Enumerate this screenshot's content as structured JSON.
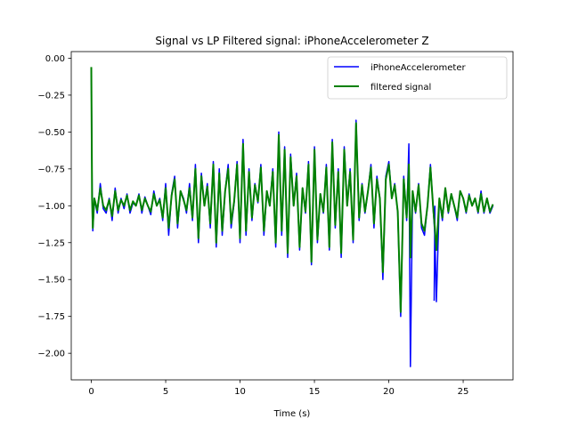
{
  "chart_data": {
    "type": "line",
    "title": "Signal vs LP Filtered signal: iPhoneAccelerometer Z",
    "xlabel": "Time (s)",
    "ylabel": "",
    "xlim": [
      -1.35,
      28.35
    ],
    "ylim": [
      -2.18,
      0.045
    ],
    "xticks": [
      0,
      5,
      10,
      15,
      20,
      25
    ],
    "xtick_labels": [
      "0",
      "5",
      "10",
      "15",
      "20",
      "25"
    ],
    "yticks": [
      0.0,
      -0.25,
      -0.5,
      -0.75,
      -1.0,
      -1.25,
      -1.5,
      -1.75,
      -2.0
    ],
    "ytick_labels": [
      "0.00",
      "−0.25",
      "−0.50",
      "−0.75",
      "−1.00",
      "−1.25",
      "−1.50",
      "−1.75",
      "−2.00"
    ],
    "grid": false,
    "legend_position": "top-right",
    "series": [
      {
        "name": "iPhoneAccelerometer",
        "color": "#0000ff",
        "width": 1.5,
        "x": [
          0.0,
          0.05,
          0.1,
          0.2,
          0.4,
          0.6,
          0.8,
          1.0,
          1.2,
          1.4,
          1.6,
          1.8,
          2.0,
          2.2,
          2.4,
          2.6,
          2.8,
          3.0,
          3.2,
          3.4,
          3.6,
          3.8,
          4.0,
          4.2,
          4.4,
          4.6,
          4.8,
          5.0,
          5.2,
          5.4,
          5.6,
          5.8,
          6.0,
          6.2,
          6.4,
          6.6,
          6.8,
          7.0,
          7.2,
          7.4,
          7.6,
          7.8,
          8.0,
          8.2,
          8.4,
          8.6,
          8.8,
          9.0,
          9.2,
          9.4,
          9.6,
          9.8,
          10.0,
          10.2,
          10.4,
          10.6,
          10.8,
          11.0,
          11.2,
          11.4,
          11.6,
          11.8,
          12.0,
          12.2,
          12.4,
          12.6,
          12.8,
          13.0,
          13.2,
          13.4,
          13.6,
          13.8,
          14.0,
          14.2,
          14.4,
          14.6,
          14.8,
          15.0,
          15.2,
          15.4,
          15.6,
          15.8,
          16.0,
          16.2,
          16.4,
          16.6,
          16.8,
          17.0,
          17.2,
          17.4,
          17.6,
          17.8,
          18.0,
          18.2,
          18.4,
          18.6,
          18.8,
          19.0,
          19.2,
          19.4,
          19.6,
          19.8,
          20.0,
          20.2,
          20.4,
          20.6,
          20.8,
          21.0,
          21.2,
          21.35,
          21.45,
          21.6,
          21.8,
          22.0,
          22.2,
          22.4,
          22.6,
          22.8,
          23.0,
          23.1,
          23.2,
          23.4,
          23.6,
          23.8,
          24.0,
          24.2,
          24.4,
          24.6,
          24.8,
          25.0,
          25.2,
          25.4,
          25.6,
          25.8,
          26.0,
          26.2,
          26.4,
          26.6,
          26.8,
          27.0
        ],
        "y": [
          -0.07,
          -0.9,
          -1.17,
          -0.95,
          -1.05,
          -0.85,
          -1.02,
          -1.05,
          -0.95,
          -1.1,
          -0.88,
          -1.05,
          -0.95,
          -1.02,
          -0.92,
          -1.05,
          -0.98,
          -1.0,
          -0.92,
          -1.05,
          -0.94,
          -1.0,
          -1.06,
          -0.9,
          -1.0,
          -0.95,
          -1.1,
          -0.85,
          -1.2,
          -0.92,
          -0.8,
          -1.15,
          -0.9,
          -0.95,
          -1.05,
          -0.85,
          -1.1,
          -0.72,
          -1.25,
          -0.78,
          -1.0,
          -0.85,
          -1.15,
          -0.7,
          -1.28,
          -0.75,
          -1.2,
          -0.9,
          -0.72,
          -1.15,
          -0.98,
          -0.7,
          -1.25,
          -0.55,
          -1.2,
          -0.75,
          -1.1,
          -0.85,
          -0.98,
          -0.72,
          -1.2,
          -0.9,
          -1.0,
          -0.75,
          -1.28,
          -0.5,
          -1.2,
          -0.6,
          -1.35,
          -0.65,
          -1.0,
          -0.78,
          -1.3,
          -0.88,
          -1.05,
          -0.7,
          -1.4,
          -0.6,
          -1.25,
          -0.92,
          -1.05,
          -0.72,
          -1.3,
          -0.55,
          -1.15,
          -0.75,
          -1.35,
          -0.6,
          -1.0,
          -0.75,
          -1.25,
          -0.42,
          -1.1,
          -0.85,
          -1.05,
          -0.9,
          -0.72,
          -1.15,
          -0.8,
          -0.95,
          -1.5,
          -0.8,
          -0.7,
          -0.95,
          -0.85,
          -1.05,
          -1.75,
          -0.8,
          -1.1,
          -0.58,
          -2.09,
          -0.9,
          -1.05,
          -0.85,
          -1.15,
          -1.2,
          -1.0,
          -0.72,
          -1.05,
          -1.2,
          -1.65,
          -0.95,
          -1.1,
          -0.88,
          -1.05,
          -0.92,
          -1.0,
          -1.1,
          -0.9,
          -0.95,
          -1.05,
          -0.92,
          -1.0,
          -0.95,
          -1.05,
          -0.9,
          -1.05,
          -0.95,
          -1.05,
          -1.0
        ],
        "x_extra": [
          23.0,
          23.05,
          23.1
        ],
        "y_extra": [
          -1.64,
          -1.64,
          -1.0
        ]
      },
      {
        "name": "filtered signal",
        "color": "#008000",
        "width": 2.0,
        "x": [
          0.0,
          0.05,
          0.1,
          0.2,
          0.4,
          0.6,
          0.8,
          1.0,
          1.2,
          1.4,
          1.6,
          1.8,
          2.0,
          2.2,
          2.4,
          2.6,
          2.8,
          3.0,
          3.2,
          3.4,
          3.6,
          3.8,
          4.0,
          4.2,
          4.4,
          4.6,
          4.8,
          5.0,
          5.2,
          5.4,
          5.6,
          5.8,
          6.0,
          6.2,
          6.4,
          6.6,
          6.8,
          7.0,
          7.2,
          7.4,
          7.6,
          7.8,
          8.0,
          8.2,
          8.4,
          8.6,
          8.8,
          9.0,
          9.2,
          9.4,
          9.6,
          9.8,
          10.0,
          10.2,
          10.4,
          10.6,
          10.8,
          11.0,
          11.2,
          11.4,
          11.6,
          11.8,
          12.0,
          12.2,
          12.4,
          12.6,
          12.8,
          13.0,
          13.2,
          13.4,
          13.6,
          13.8,
          14.0,
          14.2,
          14.4,
          14.6,
          14.8,
          15.0,
          15.2,
          15.4,
          15.6,
          15.8,
          16.0,
          16.2,
          16.4,
          16.6,
          16.8,
          17.0,
          17.2,
          17.4,
          17.6,
          17.8,
          18.0,
          18.2,
          18.4,
          18.6,
          18.8,
          19.0,
          19.2,
          19.4,
          19.6,
          19.8,
          20.0,
          20.2,
          20.4,
          20.6,
          20.8,
          21.0,
          21.2,
          21.35,
          21.45,
          21.6,
          21.8,
          22.0,
          22.2,
          22.4,
          22.6,
          22.8,
          23.0,
          23.1,
          23.2,
          23.4,
          23.6,
          23.8,
          24.0,
          24.2,
          24.4,
          24.6,
          24.8,
          25.0,
          25.2,
          25.4,
          25.6,
          25.8,
          26.0,
          26.2,
          26.4,
          26.6,
          26.8,
          27.0
        ],
        "y": [
          -0.06,
          -0.95,
          -1.15,
          -0.95,
          -1.03,
          -0.88,
          -1.0,
          -1.03,
          -0.96,
          -1.07,
          -0.9,
          -1.03,
          -0.96,
          -1.0,
          -0.93,
          -1.03,
          -0.97,
          -1.0,
          -0.93,
          -1.03,
          -0.95,
          -1.0,
          -1.04,
          -0.92,
          -1.0,
          -0.96,
          -1.08,
          -0.88,
          -1.15,
          -0.93,
          -0.82,
          -1.12,
          -0.9,
          -0.96,
          -1.03,
          -0.88,
          -1.08,
          -0.75,
          -1.22,
          -0.8,
          -1.0,
          -0.87,
          -1.12,
          -0.72,
          -1.25,
          -0.78,
          -1.17,
          -0.9,
          -0.75,
          -1.12,
          -0.97,
          -0.72,
          -1.22,
          -0.58,
          -1.17,
          -0.77,
          -1.08,
          -0.86,
          -0.97,
          -0.74,
          -1.17,
          -0.9,
          -1.0,
          -0.77,
          -1.25,
          -0.52,
          -1.17,
          -0.62,
          -1.32,
          -0.67,
          -1.0,
          -0.8,
          -1.28,
          -0.88,
          -1.04,
          -0.72,
          -1.38,
          -0.62,
          -1.23,
          -0.92,
          -1.04,
          -0.74,
          -1.28,
          -0.57,
          -1.13,
          -0.77,
          -1.32,
          -0.62,
          -1.0,
          -0.77,
          -1.23,
          -0.44,
          -1.08,
          -0.86,
          -1.04,
          -0.9,
          -0.74,
          -1.12,
          -0.82,
          -0.95,
          -1.45,
          -0.82,
          -0.72,
          -0.95,
          -0.86,
          -1.04,
          -1.72,
          -0.82,
          -1.08,
          -0.72,
          -1.35,
          -0.9,
          -1.04,
          -0.86,
          -1.12,
          -1.17,
          -1.0,
          -0.74,
          -1.04,
          -1.15,
          -1.3,
          -0.95,
          -1.08,
          -0.88,
          -1.04,
          -0.92,
          -1.0,
          -1.08,
          -0.9,
          -0.95,
          -1.04,
          -0.93,
          -1.0,
          -0.95,
          -1.04,
          -0.92,
          -1.04,
          -0.95,
          -1.04,
          -0.99
        ]
      }
    ]
  }
}
